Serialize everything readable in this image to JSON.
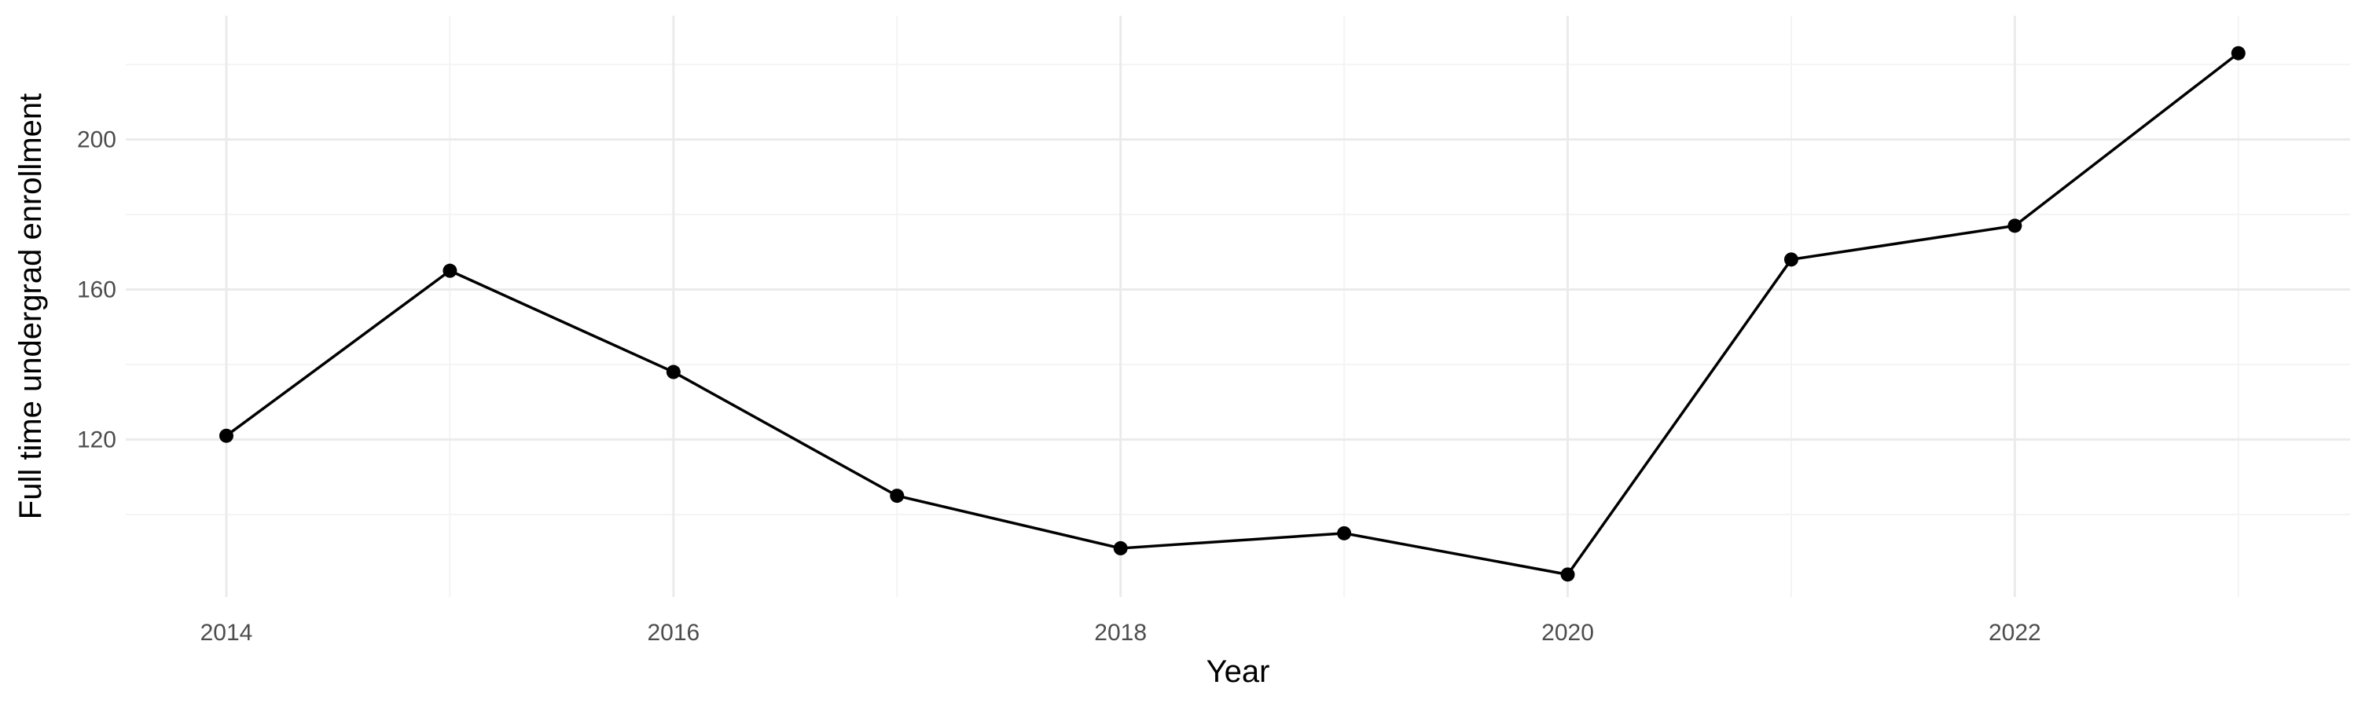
{
  "chart_data": {
    "type": "line",
    "title": "",
    "xlabel": "Year",
    "ylabel": "Full time undergrad enrollment",
    "x": [
      2014,
      2015,
      2016,
      2017,
      2018,
      2019,
      2020,
      2021,
      2022,
      2023
    ],
    "y": [
      121,
      165,
      138,
      105,
      91,
      95,
      84,
      168,
      177,
      223
    ],
    "xlim": [
      2013.55,
      2023.5
    ],
    "ylim": [
      78,
      233
    ],
    "x_ticks": [
      2014,
      2016,
      2018,
      2020,
      2022
    ],
    "x_tick_labels": [
      "2014",
      "2016",
      "2018",
      "2020",
      "2022"
    ],
    "y_ticks": [
      120,
      160,
      200
    ],
    "y_tick_labels": [
      "120",
      "160",
      "200"
    ],
    "x_minor_ticks": [
      2015,
      2017,
      2019,
      2021,
      2023
    ],
    "y_minor_ticks": [
      100,
      140,
      180,
      220
    ],
    "grid": true,
    "legend": "none",
    "colors": {
      "line": "#000000",
      "point": "#000000",
      "grid_major": "#ebebeb",
      "grid_minor": "#f4f4f4"
    }
  }
}
